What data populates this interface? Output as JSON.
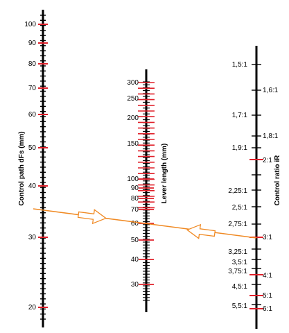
{
  "colors": {
    "axis": "#000000",
    "major_tick": "#e0202a",
    "minor_tick": "#000000",
    "connector_line": "#f08a24",
    "arrow_fill": "#ffffff"
  },
  "nomogram": {
    "scales": [
      {
        "id": "control-path",
        "title": "Control path dFs (mm)",
        "unit": "mm",
        "labels": [
          "100",
          "90",
          "80",
          "70",
          "60",
          "50",
          "40",
          "30",
          "20"
        ]
      },
      {
        "id": "lever-length",
        "title": "Lever length (mm)",
        "unit": "mm",
        "labels": [
          "300",
          "250",
          "200",
          "150",
          "100",
          "90",
          "80",
          "70",
          "60",
          "50",
          "40",
          "30"
        ]
      },
      {
        "id": "control-ratio",
        "title": "Control ratio iR",
        "labels": [
          "1,5:1",
          "1,6:1",
          "1,7:1",
          "1,8:1",
          "1,9:1",
          "2:1",
          "2,25:1",
          "2,5:1",
          "2,75:1",
          "3:1",
          "3,25:1",
          "3,5:1",
          "3,75:1",
          "4:1",
          "4,5:1",
          "5:1",
          "5,5:1",
          "6:1"
        ]
      }
    ],
    "example_reading": {
      "control_path_mm": 35,
      "lever_length_mm": 60,
      "control_ratio": "3:1"
    }
  }
}
